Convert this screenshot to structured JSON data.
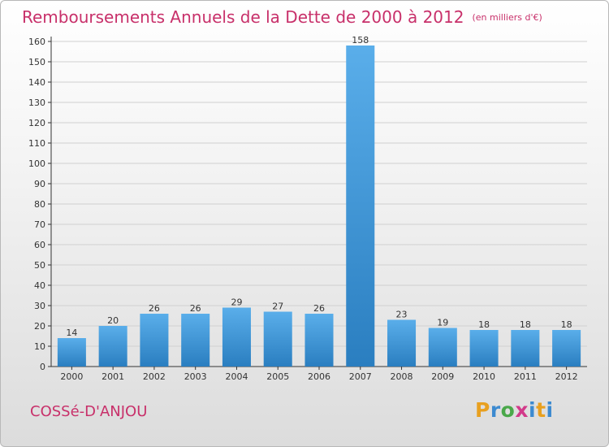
{
  "header": {
    "title": "Remboursements Annuels de la Dette de 2000 à 2012",
    "unit": "(en milliers d'€)"
  },
  "commune": "COSSé-D'ANJOU",
  "logo": {
    "letters": [
      "P",
      "r",
      "o",
      "x",
      "i",
      "t",
      "i"
    ],
    "colors": [
      "#e8a020",
      "#3c8ad0",
      "#4aa84a",
      "#d23a8a",
      "#3c8ad0",
      "#e8a020",
      "#3c8ad0"
    ]
  },
  "colors": {
    "bar_light": "#5aaeea",
    "bar_dark": "#2a7ec0",
    "title": "#c8306a",
    "axis": "#333333",
    "grid": "#d0d0d0"
  },
  "chart_data": {
    "type": "bar",
    "categories": [
      "2000",
      "2001",
      "2002",
      "2003",
      "2004",
      "2005",
      "2006",
      "2007",
      "2008",
      "2009",
      "2010",
      "2011",
      "2012"
    ],
    "values": [
      14,
      20,
      26,
      26,
      29,
      27,
      26,
      158,
      23,
      19,
      18,
      18,
      18
    ],
    "ylim": [
      0,
      160
    ],
    "yticks": [
      0,
      10,
      20,
      30,
      40,
      50,
      60,
      70,
      80,
      90,
      100,
      110,
      120,
      130,
      140,
      150,
      160
    ],
    "grid": "horizontal",
    "data_labels": true
  }
}
